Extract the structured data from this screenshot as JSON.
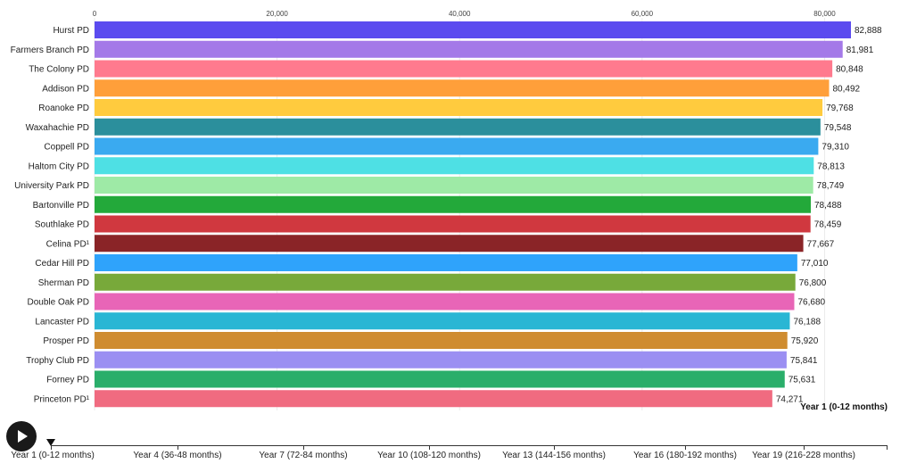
{
  "chart_data": {
    "type": "bar",
    "orientation": "horizontal",
    "title": "",
    "xlabel": "",
    "ylabel": "",
    "xlim": [
      0,
      82888
    ],
    "x_ticks": [
      0,
      20000,
      40000,
      60000,
      80000
    ],
    "x_tick_labels": [
      "0",
      "20,000",
      "40,000",
      "60,000",
      "80,000"
    ],
    "grid": true,
    "categories": [
      "Hurst PD",
      "Farmers Branch PD",
      "The Colony PD",
      "Addison PD",
      "Roanoke PD",
      "Waxahachie PD",
      "Coppell PD",
      "Haltom City PD",
      "University Park PD",
      "Bartonville PD",
      "Southlake PD",
      "Celina PD¹",
      "Cedar Hill PD",
      "Sherman PD",
      "Double Oak PD",
      "Lancaster PD",
      "Prosper PD",
      "Trophy Club PD",
      "Forney PD",
      "Princeton PD¹"
    ],
    "values": [
      82888,
      81981,
      80848,
      80492,
      79768,
      79548,
      79310,
      78813,
      78749,
      78488,
      78459,
      77667,
      77010,
      76800,
      76680,
      76188,
      75920,
      75841,
      75631,
      74271
    ],
    "value_labels": [
      "82,888",
      "81,981",
      "80,848",
      "80,492",
      "79,768",
      "79,548",
      "79,310",
      "78,813",
      "78,749",
      "78,488",
      "78,459",
      "77,667",
      "77,010",
      "76,800",
      "76,680",
      "76,188",
      "75,920",
      "75,841",
      "75,631",
      "74,271"
    ],
    "colors": [
      "#5b4bef",
      "#a479e8",
      "#ff7a8e",
      "#ff9f3a",
      "#ffcb3e",
      "#2b8f9c",
      "#3aaaf0",
      "#4ee0e4",
      "#9eeaa6",
      "#23a93a",
      "#d0383f",
      "#8a2427",
      "#2fa3fb",
      "#78a93a",
      "#e865b7",
      "#2ab6d4",
      "#cf8c30",
      "#9b8ff2",
      "#2aae6a",
      "#f06b80"
    ],
    "period_label": "Year 1 (0-12 months)"
  },
  "controls": {
    "play_icon": "play-icon",
    "timeline_labels": [
      "Year 1 (0-12 months)",
      "Year 4 (36-48 months)",
      "Year 7 (72-84 months)",
      "Year 10 (108-120 months)",
      "Year 13 (144-156 months)",
      "Year 16 (180-192 months)",
      "Year 19 (216-228 months)"
    ],
    "timeline_position": 0
  }
}
